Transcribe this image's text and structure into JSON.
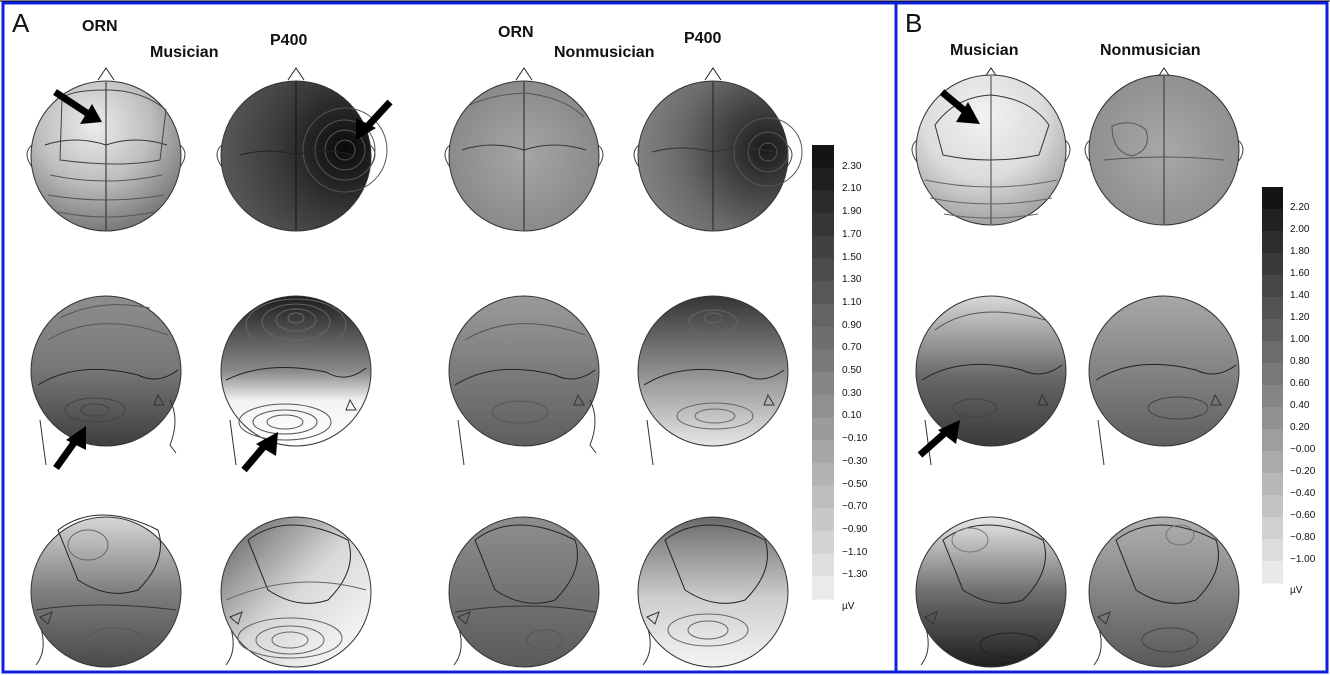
{
  "panels": {
    "A": {
      "letter": "A",
      "labels": {
        "orn_musician": "ORN",
        "musician": "Musician",
        "p400_musician": "P400",
        "orn_nonmusician": "ORN",
        "nonmusician": "Nonmusician",
        "p400_nonmusician": "P400"
      },
      "colorbar": {
        "ticks": [
          "2.30",
          "2.10",
          "1.90",
          "1.70",
          "1.50",
          "1.30",
          "1.10",
          "0.90",
          "0.70",
          "0.50",
          "0.30",
          "0.10",
          "−0.10",
          "−0.30",
          "−0.50",
          "−0.70",
          "−0.90",
          "−1.10",
          "−1.30"
        ],
        "unit": "µV"
      }
    },
    "B": {
      "letter": "B",
      "labels": {
        "musician": "Musician",
        "nonmusician": "Nonmusician"
      },
      "colorbar": {
        "ticks": [
          "2.20",
          "2.00",
          "1.80",
          "1.60",
          "1.40",
          "1.20",
          "1.00",
          "0.80",
          "0.60",
          "0.40",
          "0.20",
          "−0.00",
          "−0.20",
          "−0.40",
          "−0.60",
          "−0.80",
          "−1.00"
        ],
        "unit": "µV"
      }
    }
  },
  "colors": {
    "frame": "#1020e0",
    "dark": "#202020",
    "light": "#f0f0f0"
  }
}
